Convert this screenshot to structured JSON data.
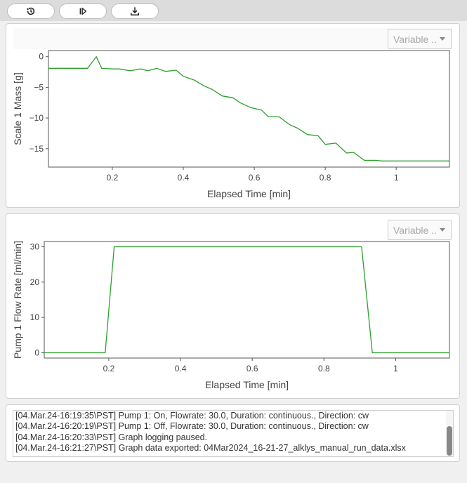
{
  "toolbar": {
    "buttons": [
      {
        "icon": "history-icon",
        "name": "history-button"
      },
      {
        "icon": "play-step-icon",
        "name": "resume-button"
      },
      {
        "icon": "download-icon",
        "name": "download-button"
      }
    ]
  },
  "charts": [
    {
      "select_label": "Variable .."
    },
    {
      "select_label": "Variable .."
    }
  ],
  "chart_data": [
    {
      "type": "line",
      "xlabel": "Elapsed Time [min]",
      "ylabel": "Scale 1 Mass [g]",
      "xlim": [
        0.02,
        1.15
      ],
      "ylim": [
        -18,
        1
      ],
      "xticks": [
        0.2,
        0.4,
        0.6,
        0.8,
        1
      ],
      "yticks": [
        0,
        -5,
        -10,
        -15
      ],
      "tick_labels_x": [
        "0.2",
        "0.4",
        "0.6",
        "0.8",
        "1"
      ],
      "tick_labels_y": [
        "0",
        "−5",
        "−10",
        "−15"
      ],
      "grid": false,
      "color": "#2ca02c",
      "series": [
        {
          "x": [
            0.02,
            0.13,
            0.155,
            0.17,
            0.2,
            0.22,
            0.25,
            0.28,
            0.3,
            0.325,
            0.35,
            0.38,
            0.4,
            0.43,
            0.46,
            0.48,
            0.51,
            0.54,
            0.56,
            0.59,
            0.62,
            0.64,
            0.67,
            0.7,
            0.72,
            0.75,
            0.78,
            0.8,
            0.83,
            0.86,
            0.88,
            0.91,
            0.94,
            0.96,
            1.0,
            1.05,
            1.1,
            1.15
          ],
          "y": [
            -1.9,
            -1.9,
            0.0,
            -1.9,
            -2.0,
            -2.0,
            -2.3,
            -2.0,
            -2.3,
            -1.9,
            -2.4,
            -2.2,
            -3.2,
            -3.8,
            -4.8,
            -5.3,
            -6.4,
            -6.7,
            -7.5,
            -8.3,
            -8.7,
            -9.8,
            -9.8,
            -11.1,
            -11.6,
            -12.7,
            -12.9,
            -14.3,
            -14.1,
            -15.7,
            -15.6,
            -16.9,
            -16.9,
            -17.0,
            -17.0,
            -17.0,
            -17.0,
            -17.0
          ]
        }
      ]
    },
    {
      "type": "line",
      "xlabel": "Elapsed Time [min]",
      "ylabel": "Pump 1 Flow Rate [ml/min]",
      "xlim": [
        0.02,
        1.15
      ],
      "ylim": [
        -1.5,
        31.5
      ],
      "xticks": [
        0.2,
        0.4,
        0.6,
        0.8,
        1
      ],
      "yticks": [
        0,
        10,
        20,
        30
      ],
      "tick_labels_x": [
        "0.2",
        "0.4",
        "0.6",
        "0.8",
        "1"
      ],
      "tick_labels_y": [
        "0",
        "10",
        "20",
        "30"
      ],
      "grid": false,
      "color": "#2ca02c",
      "series": [
        {
          "x": [
            0.02,
            0.19,
            0.215,
            0.905,
            0.935,
            1.15
          ],
          "y": [
            0,
            0,
            30,
            30,
            0,
            0
          ]
        }
      ]
    }
  ],
  "log": {
    "lines": [
      "[04.Mar.24-16:19:35\\PST] Pump 1: On, Flowrate: 30.0, Duration: continuous., Direction: cw",
      "[04.Mar.24-16:20:19\\PST] Pump 1: Off, Flowrate: 30.0, Duration: continuous., Direction: cw",
      "[04.Mar.24-16:20:33\\PST] Graph logging paused.",
      "[04.Mar.24-16:21:27\\PST] Graph data exported: 04Mar2024_16-21-27_alklys_manual_run_data.xlsx"
    ]
  }
}
